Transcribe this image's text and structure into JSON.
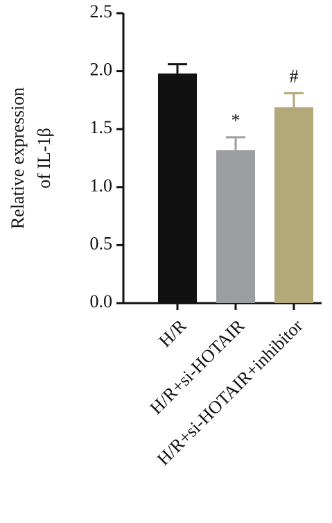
{
  "chart_data": {
    "type": "bar",
    "y_label": [
      "Relative expression",
      "of IL-1β"
    ],
    "categories": [
      "H/R",
      "H/R+si-HOTAIR",
      "H/R+si-HOTAIR+inhibitor"
    ],
    "values": [
      1.98,
      1.32,
      1.69
    ],
    "errors": [
      0.08,
      0.11,
      0.12
    ],
    "colors": [
      "#111111",
      "#9d9ea2",
      "#b3a878"
    ],
    "annotations": [
      {
        "category": "H/R+si-HOTAIR",
        "text": "*"
      },
      {
        "category": "H/R+si-HOTAIR+inhibitor",
        "text": "#"
      }
    ],
    "ylim": [
      0,
      2.5
    ],
    "yticks": [
      {
        "value": 0,
        "label": "0.0"
      },
      {
        "value": 0.5,
        "label": "0.5"
      },
      {
        "value": 1,
        "label": "1.0"
      },
      {
        "value": 1.5,
        "label": "1.5"
      },
      {
        "value": 2,
        "label": "2.0"
      },
      {
        "value": 2.5,
        "label": "2.5"
      }
    ]
  }
}
